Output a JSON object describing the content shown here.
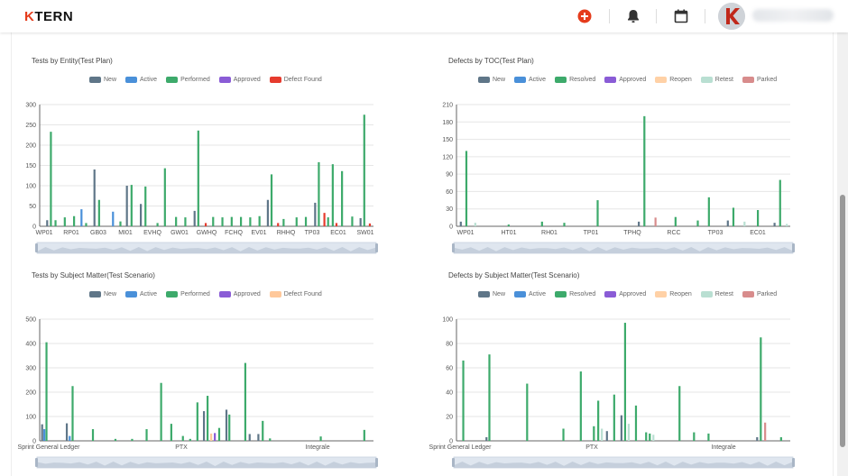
{
  "header": {
    "logo_k": "K",
    "logo_rest": "TERN"
  },
  "colors": {
    "New": "#5f7688",
    "Active": "#4a90d9",
    "Performed": "#3daa6b",
    "Resolved": "#3daa6b",
    "Approved": "#8a5cd6",
    "Defect Found": "#e63b2e",
    "Defect Found Scenario": "#ffc89a",
    "Reopen": "#ffd1a6",
    "Retest": "#b9dfd2",
    "Parked": "#d88c8c",
    "accent": "#e53c1c"
  },
  "panels": [
    {
      "title": "Tests by Entity(Test Plan)",
      "legend": [
        "New",
        "Active",
        "Performed",
        "Approved",
        "Defect Found"
      ]
    },
    {
      "title": "Defects by TOC(Test Plan)",
      "legend": [
        "New",
        "Active",
        "Resolved",
        "Approved",
        "Reopen",
        "Retest",
        "Parked"
      ]
    },
    {
      "title": "Tests by Subject Matter(Test Scenario)",
      "legend": [
        "New",
        "Active",
        "Performed",
        "Approved",
        "Defect Found"
      ]
    },
    {
      "title": "Defects by Subject Matter(Test Scenario)",
      "legend": [
        "New",
        "Active",
        "Resolved",
        "Approved",
        "Reopen",
        "Retest",
        "Parked"
      ]
    }
  ],
  "chart_data": [
    {
      "type": "bar",
      "title": "Tests by Entity(Test Plan)",
      "ylim": [
        0,
        300
      ],
      "yticks": [
        0,
        50,
        100,
        150,
        200,
        250,
        300
      ],
      "xticklabels": [
        "WP01",
        "RP01",
        "GB03",
        "MI01",
        "EVHQ",
        "GW01",
        "GWHQ",
        "FCHQ",
        "EV01",
        "RHHQ",
        "TP03",
        "EC01",
        "SW01"
      ],
      "legend": [
        "New",
        "Active",
        "Performed",
        "Approved",
        "Defect Found"
      ],
      "legend_position": "top",
      "grid": true,
      "bars": [
        {
          "x": 0.7,
          "series": "New",
          "value": 15
        },
        {
          "x": 1.1,
          "series": "Performed",
          "value": 233
        },
        {
          "x": 1.6,
          "series": "Performed",
          "value": 15
        },
        {
          "x": 2.6,
          "series": "Performed",
          "value": 22
        },
        {
          "x": 3.6,
          "series": "Performed",
          "value": 25
        },
        {
          "x": 4.4,
          "series": "Active",
          "value": 42
        },
        {
          "x": 4.9,
          "series": "Performed",
          "value": 8
        },
        {
          "x": 5.8,
          "series": "New",
          "value": 140
        },
        {
          "x": 6.3,
          "series": "Performed",
          "value": 65
        },
        {
          "x": 7.8,
          "series": "Active",
          "value": 36
        },
        {
          "x": 8.6,
          "series": "Performed",
          "value": 12
        },
        {
          "x": 9.3,
          "series": "New",
          "value": 100
        },
        {
          "x": 9.8,
          "series": "Performed",
          "value": 102
        },
        {
          "x": 10.8,
          "series": "New",
          "value": 55
        },
        {
          "x": 11.3,
          "series": "Performed",
          "value": 98
        },
        {
          "x": 12.6,
          "series": "Performed",
          "value": 8
        },
        {
          "x": 13.4,
          "series": "Performed",
          "value": 143
        },
        {
          "x": 14.6,
          "series": "Performed",
          "value": 23
        },
        {
          "x": 15.6,
          "series": "Performed",
          "value": 22
        },
        {
          "x": 16.6,
          "series": "New",
          "value": 38
        },
        {
          "x": 17.0,
          "series": "Performed",
          "value": 236
        },
        {
          "x": 17.8,
          "series": "Defect Found",
          "value": 8
        },
        {
          "x": 18.6,
          "series": "Performed",
          "value": 23
        },
        {
          "x": 19.6,
          "series": "Performed",
          "value": 22
        },
        {
          "x": 20.6,
          "series": "Performed",
          "value": 23
        },
        {
          "x": 21.6,
          "series": "Performed",
          "value": 23
        },
        {
          "x": 22.6,
          "series": "Performed",
          "value": 22
        },
        {
          "x": 23.6,
          "series": "Performed",
          "value": 25
        },
        {
          "x": 24.5,
          "series": "New",
          "value": 65
        },
        {
          "x": 24.9,
          "series": "Performed",
          "value": 128
        },
        {
          "x": 25.6,
          "series": "Defect Found",
          "value": 8
        },
        {
          "x": 26.2,
          "series": "Performed",
          "value": 18
        },
        {
          "x": 27.6,
          "series": "Performed",
          "value": 22
        },
        {
          "x": 28.6,
          "series": "Performed",
          "value": 23
        },
        {
          "x": 29.6,
          "series": "New",
          "value": 58
        },
        {
          "x": 30.0,
          "series": "Performed",
          "value": 158
        },
        {
          "x": 30.6,
          "series": "Defect Found",
          "value": 33
        },
        {
          "x": 31.0,
          "series": "Performed",
          "value": 22
        },
        {
          "x": 31.5,
          "series": "Performed",
          "value": 153
        },
        {
          "x": 31.9,
          "series": "Defect Found",
          "value": 8
        },
        {
          "x": 32.5,
          "series": "Performed",
          "value": 136
        },
        {
          "x": 33.6,
          "series": "Performed",
          "value": 24
        },
        {
          "x": 34.5,
          "series": "New",
          "value": 20
        },
        {
          "x": 34.9,
          "series": "Performed",
          "value": 275
        },
        {
          "x": 35.5,
          "series": "Defect Found",
          "value": 7
        }
      ]
    },
    {
      "type": "bar",
      "title": "Defects by TOC(Test Plan)",
      "ylim": [
        0,
        210
      ],
      "yticks": [
        0,
        30,
        60,
        90,
        120,
        150,
        180,
        210
      ],
      "xticklabels": [
        "WP01",
        "HT01",
        "RH01",
        "TP01",
        "TPHQ",
        "RCC",
        "TP03",
        "EC01"
      ],
      "legend": [
        "New",
        "Active",
        "Resolved",
        "Approved",
        "Reopen",
        "Retest",
        "Parked"
      ],
      "legend_position": "top",
      "grid": true,
      "bars": [
        {
          "x": 0.3,
          "series": "New",
          "value": 8
        },
        {
          "x": 0.8,
          "series": "Resolved",
          "value": 130
        },
        {
          "x": 1.6,
          "series": "Retest",
          "value": 6
        },
        {
          "x": 4.6,
          "series": "Resolved",
          "value": 3
        },
        {
          "x": 7.6,
          "series": "Resolved",
          "value": 8
        },
        {
          "x": 9.6,
          "series": "Resolved",
          "value": 6
        },
        {
          "x": 12.6,
          "series": "Resolved",
          "value": 45
        },
        {
          "x": 16.3,
          "series": "New",
          "value": 8
        },
        {
          "x": 16.8,
          "series": "Resolved",
          "value": 190
        },
        {
          "x": 17.8,
          "series": "Parked",
          "value": 15
        },
        {
          "x": 19.6,
          "series": "Resolved",
          "value": 16
        },
        {
          "x": 21.6,
          "series": "Resolved",
          "value": 10
        },
        {
          "x": 22.6,
          "series": "Resolved",
          "value": 50
        },
        {
          "x": 24.3,
          "series": "New",
          "value": 10
        },
        {
          "x": 24.8,
          "series": "Resolved",
          "value": 32
        },
        {
          "x": 25.8,
          "series": "Retest",
          "value": 8
        },
        {
          "x": 27.0,
          "series": "Resolved",
          "value": 28
        },
        {
          "x": 28.5,
          "series": "New",
          "value": 6
        },
        {
          "x": 29.0,
          "series": "Resolved",
          "value": 80
        },
        {
          "x": 29.6,
          "series": "Retest",
          "value": 4
        }
      ]
    },
    {
      "type": "bar",
      "title": "Tests by Subject Matter(Test Scenario)",
      "ylim": [
        0,
        500
      ],
      "yticks": [
        0,
        100,
        200,
        300,
        400,
        500
      ],
      "xticklabels": [
        "Sprint General Ledger",
        "PTX",
        "Integrale"
      ],
      "legend": [
        "New",
        "Active",
        "Performed",
        "Approved",
        "Defect Found"
      ],
      "legend_position": "top",
      "grid": true,
      "bars": [
        {
          "x": 0.2,
          "series": "New",
          "value": 68
        },
        {
          "x": 0.5,
          "series": "Active",
          "value": 48
        },
        {
          "x": 0.8,
          "series": "Performed",
          "value": 405
        },
        {
          "x": 3.6,
          "series": "New",
          "value": 72
        },
        {
          "x": 4.0,
          "series": "Active",
          "value": 20
        },
        {
          "x": 4.4,
          "series": "Performed",
          "value": 225
        },
        {
          "x": 7.2,
          "series": "Performed",
          "value": 48
        },
        {
          "x": 10.3,
          "series": "Performed",
          "value": 8
        },
        {
          "x": 12.6,
          "series": "Performed",
          "value": 8
        },
        {
          "x": 14.6,
          "series": "Performed",
          "value": 48
        },
        {
          "x": 16.6,
          "series": "Performed",
          "value": 238
        },
        {
          "x": 18.0,
          "series": "Performed",
          "value": 70
        },
        {
          "x": 19.6,
          "series": "Performed",
          "value": 20
        },
        {
          "x": 20.6,
          "series": "Performed",
          "value": 8
        },
        {
          "x": 21.6,
          "series": "Performed",
          "value": 158
        },
        {
          "x": 22.5,
          "series": "New",
          "value": 122
        },
        {
          "x": 23.0,
          "series": "Performed",
          "value": 185
        },
        {
          "x": 23.5,
          "series": "Defect Found",
          "value": 30
        },
        {
          "x": 24.0,
          "series": "Approved",
          "value": 32
        },
        {
          "x": 24.6,
          "series": "Performed",
          "value": 53
        },
        {
          "x": 25.6,
          "series": "New",
          "value": 128
        },
        {
          "x": 26.0,
          "series": "Performed",
          "value": 108
        },
        {
          "x": 28.2,
          "series": "Performed",
          "value": 320
        },
        {
          "x": 28.8,
          "series": "New",
          "value": 28
        },
        {
          "x": 30.0,
          "series": "New",
          "value": 28
        },
        {
          "x": 30.6,
          "series": "Performed",
          "value": 82
        },
        {
          "x": 31.6,
          "series": "Performed",
          "value": 10
        },
        {
          "x": 38.6,
          "series": "Performed",
          "value": 18
        },
        {
          "x": 44.6,
          "series": "Performed",
          "value": 45
        }
      ]
    },
    {
      "type": "bar",
      "title": "Defects by Subject Matter(Test Scenario)",
      "ylim": [
        0,
        100
      ],
      "yticks": [
        0,
        20,
        40,
        60,
        80,
        100
      ],
      "xticklabels": [
        "Sprint General Ledger",
        "PTX",
        "Integrale"
      ],
      "legend": [
        "New",
        "Active",
        "Resolved",
        "Approved",
        "Reopen",
        "Retest",
        "Parked"
      ],
      "legend_position": "top",
      "grid": true,
      "bars": [
        {
          "x": 0.8,
          "series": "Resolved",
          "value": 66
        },
        {
          "x": 4.0,
          "series": "New",
          "value": 3
        },
        {
          "x": 4.4,
          "series": "Resolved",
          "value": 71
        },
        {
          "x": 9.6,
          "series": "Resolved",
          "value": 47
        },
        {
          "x": 14.6,
          "series": "Resolved",
          "value": 10
        },
        {
          "x": 17.0,
          "series": "Resolved",
          "value": 57
        },
        {
          "x": 18.8,
          "series": "Resolved",
          "value": 12
        },
        {
          "x": 19.4,
          "series": "Resolved",
          "value": 33
        },
        {
          "x": 19.9,
          "series": "Retest",
          "value": 10
        },
        {
          "x": 20.6,
          "series": "New",
          "value": 8
        },
        {
          "x": 21.6,
          "series": "Resolved",
          "value": 38
        },
        {
          "x": 22.6,
          "series": "New",
          "value": 21
        },
        {
          "x": 23.1,
          "series": "Resolved",
          "value": 97
        },
        {
          "x": 23.6,
          "series": "Retest",
          "value": 14
        },
        {
          "x": 24.6,
          "series": "Resolved",
          "value": 29
        },
        {
          "x": 26.0,
          "series": "Resolved",
          "value": 7
        },
        {
          "x": 26.5,
          "series": "Resolved",
          "value": 6
        },
        {
          "x": 27.0,
          "series": "Retest",
          "value": 5
        },
        {
          "x": 30.6,
          "series": "Resolved",
          "value": 45
        },
        {
          "x": 32.6,
          "series": "Resolved",
          "value": 7
        },
        {
          "x": 34.6,
          "series": "Resolved",
          "value": 6
        },
        {
          "x": 41.3,
          "series": "New",
          "value": 3
        },
        {
          "x": 41.8,
          "series": "Resolved",
          "value": 85
        },
        {
          "x": 42.4,
          "series": "Parked",
          "value": 15
        },
        {
          "x": 44.6,
          "series": "Resolved",
          "value": 3
        }
      ]
    }
  ]
}
